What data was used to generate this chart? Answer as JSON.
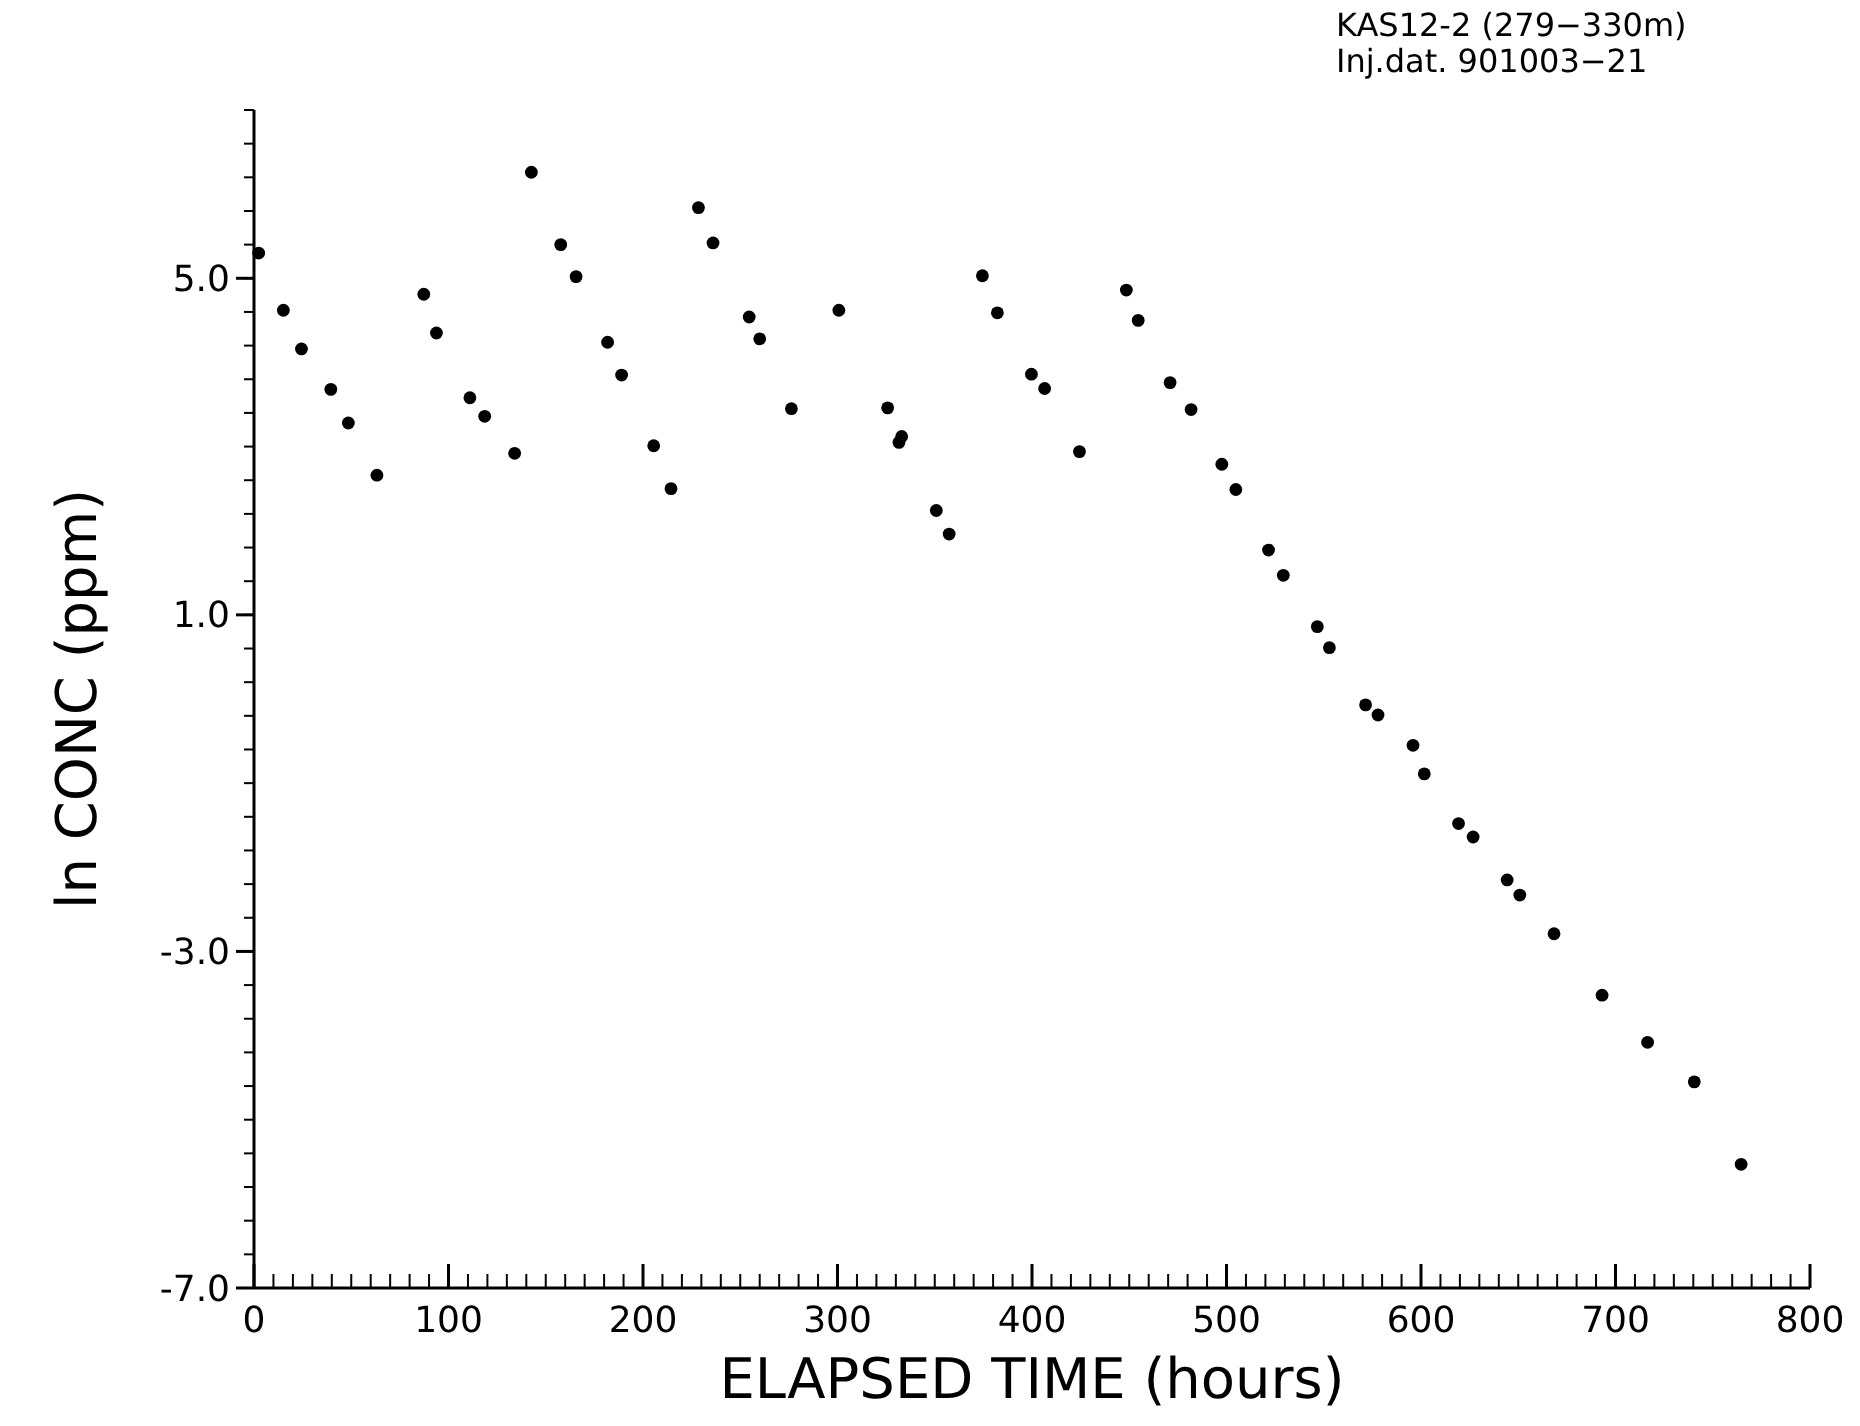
{
  "chart_data": {
    "type": "scatter",
    "title": "KAS12-2 (279−330m)",
    "subtitle": "Inj.dat. 901003−21",
    "xlabel": "ELAPSED TIME (hours)",
    "ylabel": "ln CONC (ppm)",
    "x": [
      2.4,
      15.1,
      24.4,
      39.5,
      48.5,
      63.2,
      87.3,
      93.8,
      111,
      118.6,
      134,
      142.6,
      157.7,
      165.6,
      181.8,
      189,
      205.5,
      214.4,
      228.5,
      236,
      254.6,
      260,
      276.3,
      300.7,
      325.8,
      331.6,
      333,
      350.8,
      357.4,
      374.5,
      382.2,
      399.7,
      406.5,
      424.4,
      448.5,
      454.6,
      471,
      481.8,
      497.6,
      504.8,
      521.6,
      529.2,
      546.7,
      552.9,
      571.5,
      577.9,
      595.9,
      601.7,
      619.3,
      626.8,
      644.3,
      650.8,
      668.4,
      693.1,
      716.5,
      740.5,
      764.6
    ],
    "series": [
      {
        "color": "#000000",
        "values": [
          5.3,
          4.62,
          4.16,
          3.68,
          3.28,
          2.66,
          4.81,
          4.35,
          3.58,
          3.36,
          2.92,
          6.26,
          5.4,
          5.02,
          4.24,
          3.85,
          3.01,
          2.5,
          5.84,
          5.42,
          4.54,
          4.28,
          3.45,
          4.62,
          3.46,
          3.05,
          3.12,
          2.24,
          1.96,
          5.03,
          4.59,
          3.86,
          3.69,
          2.94,
          4.86,
          4.5,
          3.76,
          3.44,
          2.79,
          2.49,
          1.77,
          1.47,
          0.86,
          0.61,
          -0.07,
          -0.19,
          -0.55,
          -0.89,
          -1.48,
          -1.64,
          -2.15,
          -2.33,
          -2.79,
          -3.52,
          -4.08,
          -4.55,
          -5.53
        ]
      }
    ],
    "xlim": [
      0,
      800
    ],
    "xticks": [
      0,
      100,
      200,
      300,
      400,
      500,
      600,
      700,
      800
    ],
    "ylim": [
      -7,
      7
    ],
    "yticks": [
      {
        "value": -7,
        "label": "-7.0"
      },
      {
        "value": -3,
        "label": "-3.0"
      },
      {
        "value": 1,
        "label": "1.0"
      },
      {
        "value": 5,
        "label": "5.0"
      }
    ],
    "marker": "circle",
    "grid": false
  }
}
